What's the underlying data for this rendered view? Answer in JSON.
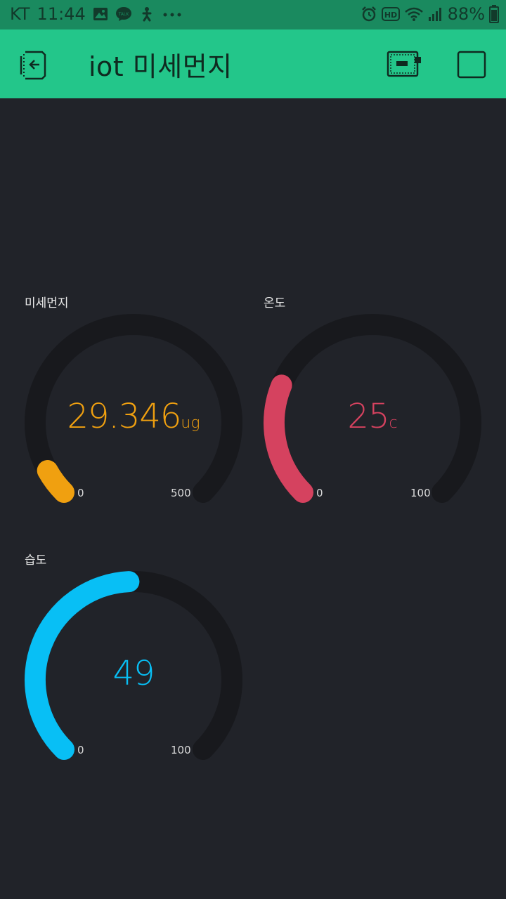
{
  "status_bar": {
    "carrier": "KT",
    "time": "11:44",
    "battery": "88%",
    "left_icons": [
      "gallery-icon",
      "kakaotalk-icon",
      "accessibility-icon",
      "more-dots-icon"
    ],
    "right_icons": [
      "alarm-icon",
      "hd-icon",
      "wifi-icon",
      "signal-icon",
      "battery-icon"
    ]
  },
  "app_bar": {
    "title": "iot 미세먼지",
    "background": "#23c68a",
    "icons": [
      "exit-project-icon",
      "device-icon",
      "stop-icon"
    ]
  },
  "gauges": [
    {
      "label": "미세먼지",
      "value": "29.346",
      "unit": "ug",
      "min": "0",
      "max": "500",
      "fraction": 0.059,
      "color": "#f0a010"
    },
    {
      "label": "온도",
      "value": "25",
      "unit": "c",
      "min": "0",
      "max": "100",
      "fraction": 0.25,
      "color": "#d5425f"
    },
    {
      "label": "습도",
      "value": "49",
      "unit": "",
      "min": "0",
      "max": "100",
      "fraction": 0.49,
      "color": "#08bff5"
    }
  ],
  "colors": {
    "background": "#212329",
    "gauge_track": "#18191d",
    "status_bar": "#1a8a5f"
  }
}
